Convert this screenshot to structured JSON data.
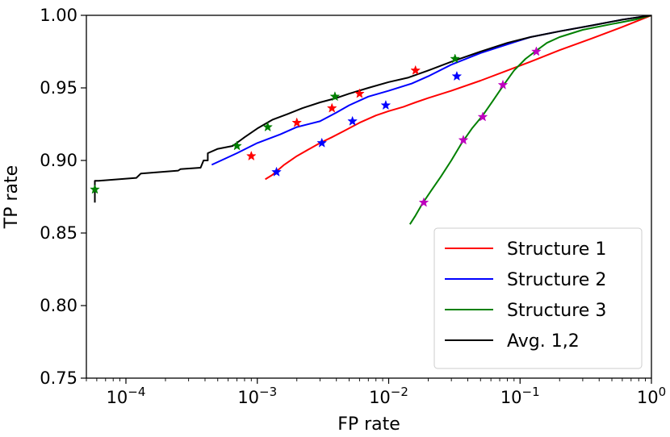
{
  "chart_data": {
    "type": "line",
    "title": "",
    "xlabel": "FP rate",
    "ylabel": "TP rate",
    "xscale": "log",
    "xlim": [
      5e-05,
      1
    ],
    "ylim": [
      0.75,
      1.0
    ],
    "x_ticks": [
      {
        "value": 0.0001,
        "base": "10",
        "exp": "−4"
      },
      {
        "value": 0.001,
        "base": "10",
        "exp": "−3"
      },
      {
        "value": 0.01,
        "base": "10",
        "exp": "−2"
      },
      {
        "value": 0.1,
        "base": "10",
        "exp": "−1"
      },
      {
        "value": 1,
        "base": "10",
        "exp": "0"
      }
    ],
    "y_ticks": [
      "0.75",
      "0.80",
      "0.85",
      "0.90",
      "0.95",
      "1.00"
    ],
    "grid": false,
    "legend_position": "lower-right",
    "series": [
      {
        "name": "Structure 1",
        "color": "#ff0000",
        "x": [
          0.00115,
          0.0013,
          0.0016,
          0.002,
          0.0025,
          0.003,
          0.0037,
          0.0045,
          0.006,
          0.008,
          0.01,
          0.013,
          0.016,
          0.02,
          0.03,
          0.05,
          0.08,
          0.12,
          0.2,
          0.35,
          0.6,
          1.0
        ],
        "y": [
          0.887,
          0.89,
          0.897,
          0.903,
          0.908,
          0.912,
          0.916,
          0.92,
          0.926,
          0.931,
          0.934,
          0.937,
          0.94,
          0.943,
          0.948,
          0.955,
          0.962,
          0.968,
          0.976,
          0.984,
          0.992,
          1.0
        ],
        "markers": {
          "color": "#ff0000",
          "x": [
            0.0009,
            0.002,
            0.0037,
            0.006,
            0.016
          ],
          "y": [
            0.903,
            0.926,
            0.936,
            0.946,
            0.962
          ]
        }
      },
      {
        "name": "Structure 2",
        "color": "#0000ff",
        "x": [
          0.00045,
          0.0007,
          0.001,
          0.0015,
          0.002,
          0.003,
          0.004,
          0.005,
          0.007,
          0.01,
          0.015,
          0.02,
          0.03,
          0.05,
          0.08,
          0.12,
          0.2,
          0.35,
          0.6,
          1.0
        ],
        "y": [
          0.897,
          0.905,
          0.912,
          0.918,
          0.923,
          0.927,
          0.933,
          0.938,
          0.944,
          0.948,
          0.953,
          0.958,
          0.966,
          0.974,
          0.98,
          0.985,
          0.989,
          0.993,
          0.997,
          1.0
        ],
        "markers": {
          "color": "#0000ff",
          "x": [
            0.0014,
            0.0031,
            0.0053,
            0.0095,
            0.033
          ],
          "y": [
            0.892,
            0.912,
            0.927,
            0.938,
            0.958
          ]
        }
      },
      {
        "name": "Structure 3",
        "color": "#008000",
        "x": [
          0.0145,
          0.016,
          0.018,
          0.021,
          0.025,
          0.03,
          0.036,
          0.043,
          0.052,
          0.062,
          0.075,
          0.09,
          0.11,
          0.13,
          0.16,
          0.2,
          0.3,
          0.5,
          0.75,
          1.0
        ],
        "y": [
          0.856,
          0.862,
          0.87,
          0.879,
          0.889,
          0.9,
          0.912,
          0.922,
          0.931,
          0.941,
          0.952,
          0.962,
          0.97,
          0.975,
          0.981,
          0.985,
          0.99,
          0.994,
          0.997,
          1.0
        ],
        "markers": {
          "color": "#bf00bf",
          "x": [
            0.0185,
            0.037,
            0.052,
            0.074,
            0.133
          ],
          "y": [
            0.871,
            0.914,
            0.93,
            0.952,
            0.975
          ]
        }
      },
      {
        "name": "Avg. 1,2",
        "color": "#000000",
        "x": [
          5.8e-05,
          5.8e-05,
          6.2e-05,
          0.00012,
          0.00013,
          0.00025,
          0.00026,
          0.00037,
          0.00039,
          0.00042,
          0.00042,
          0.0005,
          0.00065,
          0.0008,
          0.001,
          0.0013,
          0.0017,
          0.0022,
          0.003,
          0.004,
          0.005,
          0.007,
          0.01,
          0.014,
          0.02,
          0.03,
          0.05,
          0.08,
          0.12,
          0.2,
          0.35,
          0.6,
          1.0
        ],
        "y": [
          0.871,
          0.886,
          0.886,
          0.888,
          0.891,
          0.893,
          0.894,
          0.895,
          0.9,
          0.9,
          0.905,
          0.908,
          0.91,
          0.916,
          0.922,
          0.928,
          0.932,
          0.936,
          0.94,
          0.943,
          0.946,
          0.95,
          0.954,
          0.957,
          0.962,
          0.968,
          0.975,
          0.981,
          0.985,
          0.989,
          0.993,
          0.997,
          1.0
        ],
        "markers": {
          "color": "#008000",
          "x": [
            5.8e-05,
            0.0007,
            0.0012,
            0.0039,
            0.032
          ],
          "y": [
            0.88,
            0.91,
            0.923,
            0.944,
            0.97
          ]
        }
      }
    ]
  }
}
